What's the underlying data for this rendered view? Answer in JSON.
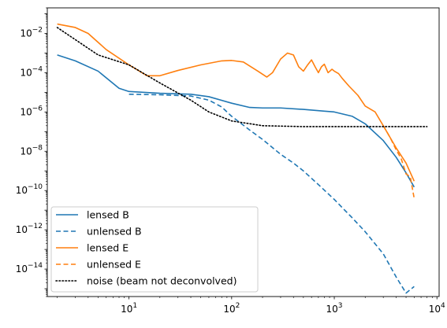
{
  "chart_data": {
    "type": "line",
    "xscale": "log",
    "yscale": "log",
    "xlim": [
      1.6,
      10500
    ],
    "ylim": [
      4e-16,
      0.2
    ],
    "x_ticks": [
      {
        "value": 10,
        "base": "10",
        "exp": "1"
      },
      {
        "value": 100,
        "base": "10",
        "exp": "2"
      },
      {
        "value": 1000,
        "base": "10",
        "exp": "3"
      },
      {
        "value": 10000,
        "base": "10",
        "exp": "4"
      }
    ],
    "y_ticks": [
      {
        "value": 0.01,
        "base": "10",
        "exp": "−2"
      },
      {
        "value": 0.0001,
        "base": "10",
        "exp": "−4"
      },
      {
        "value": 1e-06,
        "base": "10",
        "exp": "−6"
      },
      {
        "value": 1e-08,
        "base": "10",
        "exp": "−8"
      },
      {
        "value": 1e-10,
        "base": "10",
        "exp": "−10"
      },
      {
        "value": 1e-12,
        "base": "10",
        "exp": "−12"
      },
      {
        "value": 1e-14,
        "base": "10",
        "exp": "−14"
      }
    ],
    "legend_position": "lower-left",
    "series": [
      {
        "name": "lensed B",
        "color": "#1f77b4",
        "style": "solid",
        "points": [
          [
            2,
            0.0008
          ],
          [
            3,
            0.0004
          ],
          [
            5,
            0.00012
          ],
          [
            8,
            1.6e-05
          ],
          [
            10,
            1.1e-05
          ],
          [
            20,
            9e-06
          ],
          [
            40,
            8e-06
          ],
          [
            60,
            6e-06
          ],
          [
            100,
            2.8e-06
          ],
          [
            150,
            1.7e-06
          ],
          [
            200,
            1.6e-06
          ],
          [
            300,
            1.6e-06
          ],
          [
            500,
            1.35e-06
          ],
          [
            800,
            1.1e-06
          ],
          [
            1000,
            1e-06
          ],
          [
            1500,
            6e-07
          ],
          [
            2000,
            2.5e-07
          ],
          [
            3000,
            3.5e-08
          ],
          [
            4000,
            5e-09
          ],
          [
            5000,
            8e-10
          ],
          [
            6000,
            1.5e-10
          ]
        ]
      },
      {
        "name": "unlensed B",
        "color": "#1f77b4",
        "style": "dashed",
        "points": [
          [
            10,
            8e-06
          ],
          [
            20,
            7.5e-06
          ],
          [
            40,
            6.5e-06
          ],
          [
            60,
            4e-06
          ],
          [
            80,
            1.8e-06
          ],
          [
            100,
            6e-07
          ],
          [
            150,
            1.2e-07
          ],
          [
            200,
            4e-08
          ],
          [
            300,
            7e-09
          ],
          [
            400,
            2.5e-09
          ],
          [
            500,
            1e-09
          ],
          [
            700,
            2e-10
          ],
          [
            1000,
            3.5e-11
          ],
          [
            1500,
            4e-12
          ],
          [
            2000,
            8e-13
          ],
          [
            3000,
            6e-14
          ],
          [
            4000,
            4e-15
          ],
          [
            5000,
            6e-16
          ],
          [
            6000,
            1.3e-15
          ]
        ]
      },
      {
        "name": "lensed E",
        "color": "#ff7f0e",
        "style": "solid",
        "points": [
          [
            2,
            0.03
          ],
          [
            3,
            0.02
          ],
          [
            4,
            0.01
          ],
          [
            6,
            0.0015
          ],
          [
            10,
            0.00025
          ],
          [
            15,
            7e-05
          ],
          [
            20,
            7e-05
          ],
          [
            30,
            0.00013
          ],
          [
            50,
            0.00025
          ],
          [
            80,
            0.0004
          ],
          [
            100,
            0.00042
          ],
          [
            130,
            0.00035
          ],
          [
            180,
            0.00012
          ],
          [
            220,
            6e-05
          ],
          [
            250,
            0.0001
          ],
          [
            300,
            0.0005
          ],
          [
            350,
            0.001
          ],
          [
            400,
            0.0008
          ],
          [
            450,
            0.0002
          ],
          [
            500,
            0.00012
          ],
          [
            550,
            0.00025
          ],
          [
            600,
            0.00045
          ],
          [
            650,
            0.0002
          ],
          [
            700,
            0.0001
          ],
          [
            750,
            0.0002
          ],
          [
            800,
            0.00027
          ],
          [
            870,
            0.0001
          ],
          [
            950,
            0.00015
          ],
          [
            1000,
            0.00012
          ],
          [
            1100,
            9e-05
          ],
          [
            1200,
            5e-05
          ],
          [
            1400,
            2e-05
          ],
          [
            1700,
            7e-06
          ],
          [
            2000,
            2e-06
          ],
          [
            2500,
            1e-06
          ],
          [
            3000,
            2e-07
          ],
          [
            3500,
            5e-08
          ],
          [
            4000,
            1.5e-08
          ],
          [
            5000,
            2.5e-09
          ],
          [
            6000,
            3e-10
          ]
        ]
      },
      {
        "name": "unlensed E",
        "color": "#ff7f0e",
        "style": "dashed",
        "points": [
          [
            3000,
            2e-07
          ],
          [
            3500,
            5e-08
          ],
          [
            4000,
            1.2e-08
          ],
          [
            4500,
            4e-09
          ],
          [
            5000,
            7e-10
          ],
          [
            5500,
            5e-10
          ],
          [
            6000,
            4e-11
          ]
        ]
      },
      {
        "name": "noise (beam not deconvolved)",
        "color": "#000000",
        "style": "dotted",
        "points": [
          [
            2,
            0.02
          ],
          [
            5,
            0.0008
          ],
          [
            10,
            0.00025
          ],
          [
            20,
            3e-05
          ],
          [
            40,
            4e-06
          ],
          [
            60,
            1e-06
          ],
          [
            100,
            3.5e-07
          ],
          [
            200,
            2e-07
          ],
          [
            500,
            1.8e-07
          ],
          [
            1000,
            1.8e-07
          ],
          [
            2000,
            1.8e-07
          ],
          [
            4000,
            1.8e-07
          ],
          [
            8000,
            1.8e-07
          ]
        ]
      }
    ]
  }
}
